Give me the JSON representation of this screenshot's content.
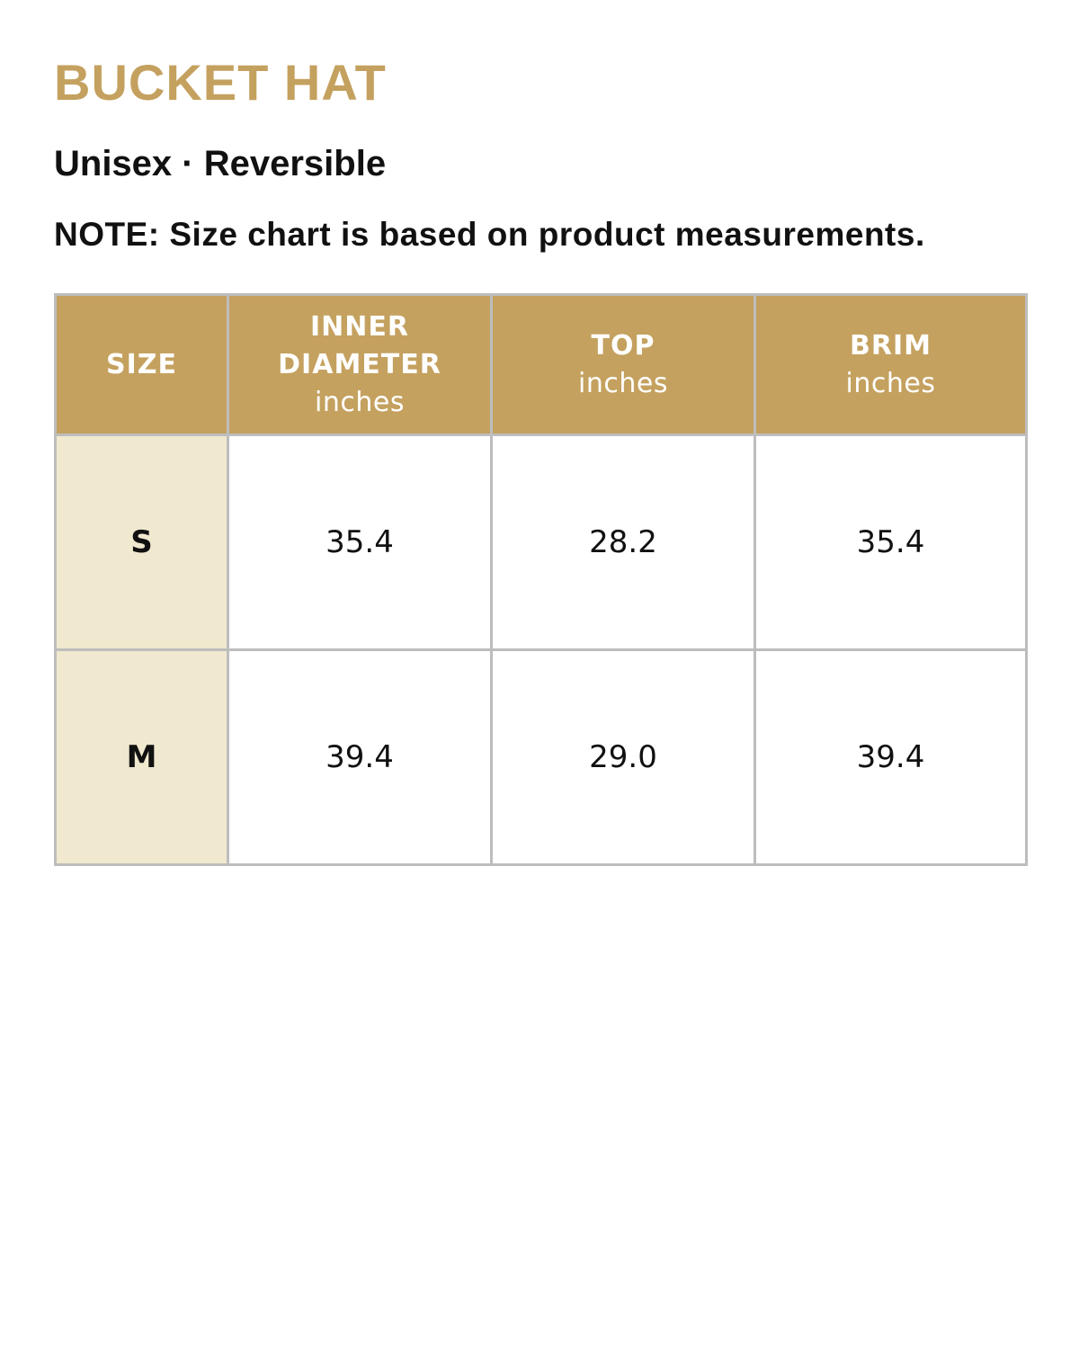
{
  "header": {
    "title": "BUCKET HAT",
    "subtitle": "Unisex · Reversible",
    "note": "NOTE: Size chart is based on product measurements."
  },
  "table": {
    "columns": [
      {
        "label": "SIZE"
      },
      {
        "label": "INNER DIAMETER",
        "unit": "inches"
      },
      {
        "label": "TOP",
        "unit": "inches"
      },
      {
        "label": "BRIM",
        "unit": "inches"
      }
    ],
    "rows": [
      [
        "S",
        "35.4",
        "28.2",
        "35.4"
      ],
      [
        "M",
        "39.4",
        "29.0",
        "39.4"
      ]
    ]
  }
}
